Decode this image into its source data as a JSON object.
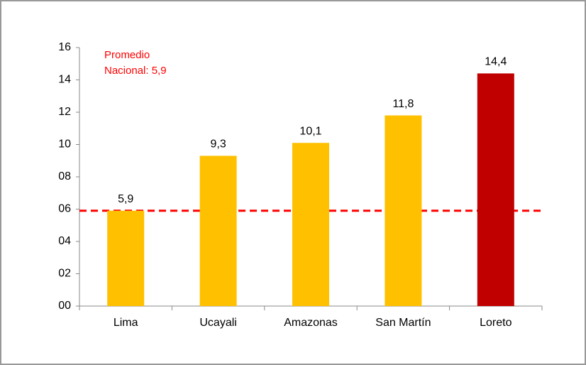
{
  "chart_data": {
    "type": "bar",
    "categories": [
      "Lima",
      "Ucayali",
      "Amazonas",
      "San Martín",
      "Loreto"
    ],
    "values": [
      5.9,
      9.3,
      10.1,
      11.8,
      14.4
    ],
    "value_labels": [
      "5,9",
      "9,3",
      "10,1",
      "11,8",
      "14,4"
    ],
    "colors": [
      "#ffc000",
      "#ffc000",
      "#ffc000",
      "#ffc000",
      "#c00000"
    ],
    "ylim": [
      0,
      16
    ],
    "yticks": [
      {
        "value": 0,
        "label": "00"
      },
      {
        "value": 2,
        "label": "02"
      },
      {
        "value": 4,
        "label": "04"
      },
      {
        "value": 6,
        "label": "06"
      },
      {
        "value": 8,
        "label": "08"
      },
      10,
      12,
      14,
      16
    ],
    "reference_line": {
      "value": 5.9,
      "label": [
        "Promedio",
        "Nacional: 5,9"
      ],
      "color": "#ff0000"
    }
  }
}
